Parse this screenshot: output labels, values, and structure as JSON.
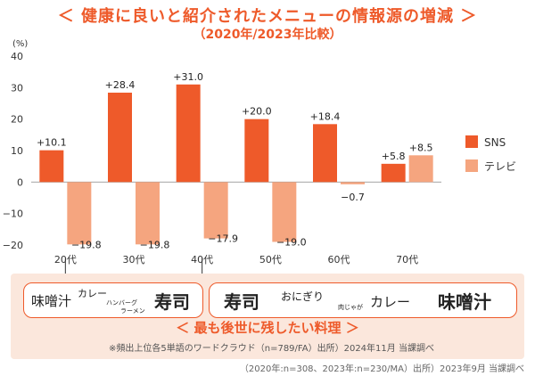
{
  "title": "＜ 健康に良いと紹介されたメニューの情報源の増減 ＞",
  "subtitle": "（2020年/2023年比較）",
  "colors": {
    "accent": "#ee5a2a",
    "sns": "#ee5a2a",
    "tv": "#f5a57f",
    "panel": "#fbe7dc"
  },
  "chart_data": {
    "type": "bar",
    "title": "＜ 健康に良いと紹介されたメニューの情報源の増減 ＞",
    "subtitle": "（2020年/2023年比較）",
    "ylabel": "(%)",
    "ylim": [
      -20,
      40
    ],
    "yticks": [
      40,
      30,
      20,
      10,
      0,
      -10,
      -20
    ],
    "categories": [
      "20代",
      "30代",
      "40代",
      "50代",
      "60代",
      "70代"
    ],
    "series": [
      {
        "name": "SNS",
        "values": [
          10.1,
          28.4,
          31.0,
          20.0,
          18.4,
          5.8
        ],
        "labels": [
          "+10.1",
          "+28.4",
          "+31.0",
          "+20.0",
          "+18.4",
          "+5.8"
        ]
      },
      {
        "name": "テレビ",
        "values": [
          -19.8,
          -19.8,
          -17.9,
          -19.0,
          -0.7,
          8.5
        ],
        "labels": [
          "−19.8",
          "−19.8",
          "−17.9",
          "−19.0",
          "−0.7",
          "+8.5"
        ]
      }
    ],
    "legend": "right",
    "grid": false
  },
  "panel": {
    "wordcloud_left": [
      "味噌汁",
      "カレー",
      "ハンバーグ",
      "ラーメン",
      "寿司"
    ],
    "wordcloud_right": [
      "寿司",
      "おにぎり",
      "肉じゃが",
      "カレー",
      "味噌汁"
    ],
    "title": "＜ 最も後世に残したい料理 ＞",
    "note": "※頻出上位各5単語のワードクラウド（n=789/FA）出所）2024年11月 当課調べ"
  },
  "footer": "（2020年:n=308、2023年:n=230/MA）出所）2023年9月 当課調べ"
}
